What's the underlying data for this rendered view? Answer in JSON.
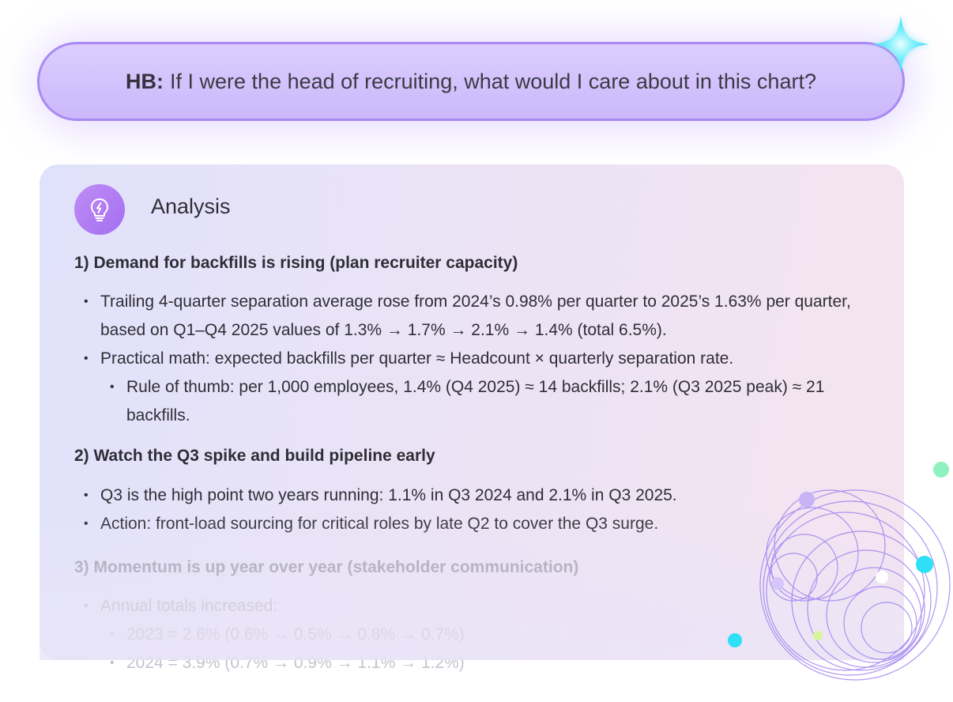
{
  "prompt": {
    "speaker": "HB:",
    "text": "If I were the head of recruiting, what would I care about in this chart?"
  },
  "analysis": {
    "title": "Analysis",
    "icon": "lightbulb-icon",
    "sections": [
      {
        "heading": "1) Demand for backfills is rising (plan recruiter capacity)",
        "bullets": [
          "Trailing 4-quarter separation average rose from 2024’s 0.98% per quarter to 2025’s 1.63% per quarter, based on Q1–Q4 2025 values of 1.3% → 1.7% → 2.1% → 1.4% (total 6.5%).",
          "Practical math: expected backfills per quarter ≈ Headcount × quarterly separation rate."
        ],
        "sub_bullets": [
          "Rule of thumb: per 1,000 employees, 1.4% (Q4 2025) ≈ 14 backfills; 2.1% (Q3 2025 peak) ≈ 21 backfills."
        ]
      },
      {
        "heading": "2) Watch the Q3 spike and build pipeline early",
        "bullets": [
          "Q3 is the high point two years running: 1.1% in Q3 2024 and 2.1% in Q3 2025.",
          "Action: front-load sourcing for critical roles by late Q2 to cover the Q3 surge."
        ]
      },
      {
        "heading": "3) Momentum is up year over year (stakeholder communication)",
        "bullets": [
          "Annual totals increased:"
        ],
        "sub_bullets": [
          "2023 = 2.6% (0.6% → 0.5% → 0.8% → 0.7%)",
          "2024 = 3.9% (0.7% → 0.9% → 1.1% → 1.2%)"
        ]
      }
    ]
  },
  "colors": {
    "pill_border": "#a98af5",
    "pill_fill": "#d6c6fc",
    "badge": "#b27ff3",
    "text": "#2f2e36",
    "sparkle": "#5ee8f7",
    "dot_green": "#8ff0c0",
    "dot_cyan": "#2ee0f5"
  }
}
